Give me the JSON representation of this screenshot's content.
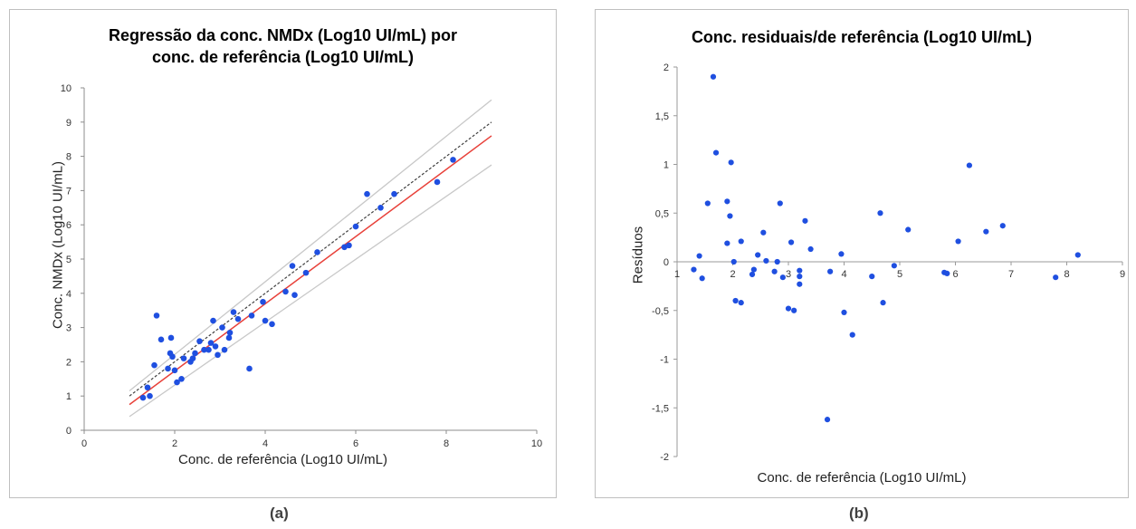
{
  "captions": [
    "(a)",
    "(b)"
  ],
  "chart_data": [
    {
      "type": "scatter",
      "title_lines": [
        "Regressão da conc. NMDx (Log10 UI/mL) por",
        "conc. de referência (Log10 UI/mL)"
      ],
      "xlabel": "Conc. de referência (Log10 UI/mL)",
      "ylabel": "Conc. NMDx (Log10 UI/mL)",
      "xlim": [
        0,
        10
      ],
      "ylim": [
        0,
        10
      ],
      "x_ticks": [
        "0",
        "2",
        "4",
        "6",
        "8",
        "10"
      ],
      "y_ticks": [
        "0",
        "1",
        "2",
        "3",
        "4",
        "5",
        "6",
        "7",
        "8",
        "9",
        "10"
      ],
      "grid": false,
      "colors": {
        "points": "#1f4fe0",
        "regression": "#e8413a",
        "identity": "#404040",
        "bounds": "#c8c8c8"
      },
      "points": [
        [
          1.3,
          0.95
        ],
        [
          1.4,
          1.25
        ],
        [
          1.45,
          1.0
        ],
        [
          1.55,
          1.9
        ],
        [
          1.6,
          3.35
        ],
        [
          1.7,
          2.65
        ],
        [
          1.85,
          1.8
        ],
        [
          1.9,
          2.25
        ],
        [
          1.92,
          2.7
        ],
        [
          1.95,
          2.15
        ],
        [
          2.0,
          1.75
        ],
        [
          2.05,
          1.4
        ],
        [
          2.15,
          1.5
        ],
        [
          2.2,
          2.1
        ],
        [
          2.35,
          2.0
        ],
        [
          2.4,
          2.1
        ],
        [
          2.45,
          2.25
        ],
        [
          2.55,
          2.6
        ],
        [
          2.65,
          2.35
        ],
        [
          2.75,
          2.35
        ],
        [
          2.8,
          2.55
        ],
        [
          2.85,
          3.2
        ],
        [
          2.9,
          2.45
        ],
        [
          2.95,
          2.2
        ],
        [
          3.05,
          3.0
        ],
        [
          3.1,
          2.35
        ],
        [
          3.2,
          2.7
        ],
        [
          3.22,
          2.85
        ],
        [
          3.3,
          3.45
        ],
        [
          3.4,
          3.25
        ],
        [
          3.65,
          1.8
        ],
        [
          3.7,
          3.35
        ],
        [
          3.95,
          3.75
        ],
        [
          4.0,
          3.2
        ],
        [
          4.15,
          3.1
        ],
        [
          4.45,
          4.05
        ],
        [
          4.6,
          4.8
        ],
        [
          4.65,
          3.95
        ],
        [
          4.9,
          4.6
        ],
        [
          5.15,
          5.2
        ],
        [
          5.75,
          5.35
        ],
        [
          5.85,
          5.4
        ],
        [
          6.0,
          5.95
        ],
        [
          6.25,
          6.9
        ],
        [
          6.55,
          6.5
        ],
        [
          6.85,
          6.9
        ],
        [
          7.8,
          7.25
        ],
        [
          8.15,
          7.9
        ]
      ],
      "lines": {
        "identity": [
          [
            1,
            1
          ],
          [
            9,
            9
          ]
        ],
        "regression": [
          [
            1,
            0.75
          ],
          [
            9,
            8.6
          ]
        ],
        "upper_bound": [
          [
            1,
            1.15
          ],
          [
            9,
            9.65
          ]
        ],
        "lower_bound": [
          [
            1,
            0.4
          ],
          [
            9,
            7.75
          ]
        ]
      }
    },
    {
      "type": "scatter",
      "title": "Conc. residuais/de referência (Log10 UI/mL)",
      "xlabel": "Conc. de referência (Log10 UI/mL)",
      "ylabel": "Resíduos",
      "xlim": [
        1,
        9
      ],
      "ylim": [
        -2,
        2
      ],
      "x_ticks": [
        "1",
        "2",
        "3",
        "4",
        "5",
        "6",
        "7",
        "8",
        "9"
      ],
      "y_ticks": [
        "-2",
        "-1,5",
        "-1",
        "-0,5",
        "0",
        "0,5",
        "1",
        "1,5",
        "2"
      ],
      "grid": false,
      "colors": {
        "points": "#1f4fe0",
        "axis": "#9a9a9a"
      },
      "points": [
        [
          1.3,
          -0.08
        ],
        [
          1.4,
          0.06
        ],
        [
          1.45,
          -0.17
        ],
        [
          1.55,
          0.6
        ],
        [
          1.65,
          1.9
        ],
        [
          1.7,
          1.12
        ],
        [
          1.9,
          0.62
        ],
        [
          1.9,
          0.19
        ],
        [
          1.95,
          0.47
        ],
        [
          1.97,
          1.02
        ],
        [
          2.02,
          0.0
        ],
        [
          2.05,
          -0.4
        ],
        [
          2.15,
          -0.42
        ],
        [
          2.15,
          0.21
        ],
        [
          2.35,
          -0.13
        ],
        [
          2.38,
          -0.08
        ],
        [
          2.45,
          0.07
        ],
        [
          2.55,
          0.3
        ],
        [
          2.6,
          0.01
        ],
        [
          2.75,
          -0.1
        ],
        [
          2.8,
          0.0
        ],
        [
          2.85,
          0.6
        ],
        [
          2.9,
          -0.16
        ],
        [
          3.0,
          -0.48
        ],
        [
          3.05,
          0.2
        ],
        [
          3.1,
          -0.5
        ],
        [
          3.2,
          -0.15
        ],
        [
          3.2,
          -0.23
        ],
        [
          3.2,
          -0.09
        ],
        [
          3.3,
          0.42
        ],
        [
          3.4,
          0.13
        ],
        [
          3.7,
          -1.62
        ],
        [
          3.75,
          -0.1
        ],
        [
          3.95,
          0.08
        ],
        [
          4.0,
          -0.52
        ],
        [
          4.15,
          -0.75
        ],
        [
          4.5,
          -0.15
        ],
        [
          4.65,
          0.5
        ],
        [
          4.7,
          -0.42
        ],
        [
          4.9,
          -0.04
        ],
        [
          5.15,
          0.33
        ],
        [
          5.8,
          -0.11
        ],
        [
          5.85,
          -0.12
        ],
        [
          6.05,
          0.21
        ],
        [
          6.25,
          0.99
        ],
        [
          6.55,
          0.31
        ],
        [
          6.85,
          0.37
        ],
        [
          7.8,
          -0.16
        ],
        [
          8.2,
          0.07
        ]
      ]
    }
  ]
}
